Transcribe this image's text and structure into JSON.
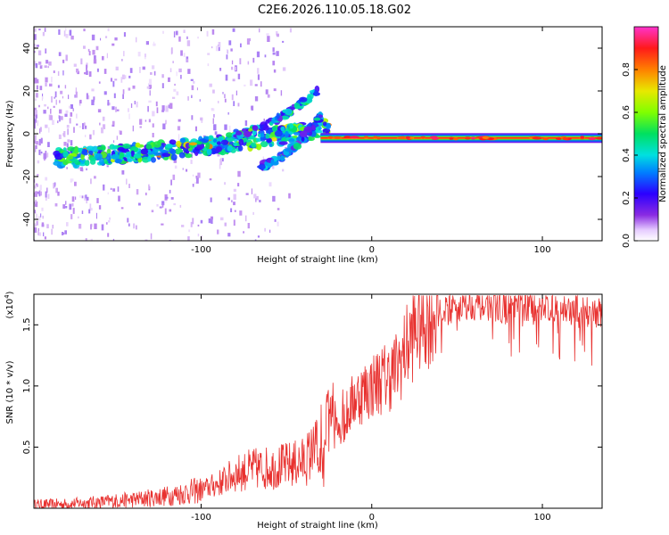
{
  "title": "C2E6.2026.110.05.18.G02",
  "chart_data": [
    {
      "type": "heatmap",
      "name": "spectrogram",
      "xlabel": "Height of straight line (km)",
      "ylabel": "Frequency (Hz)",
      "xlim": [
        -198,
        135
      ],
      "ylim": [
        -50,
        50
      ],
      "x_ticks": [
        -100,
        0,
        100
      ],
      "y_ticks": [
        -40,
        -20,
        0,
        20,
        40
      ],
      "colorbar": {
        "label": "Normalized spectral amplitude",
        "range": [
          0,
          1
        ],
        "ticks": [
          "0.0",
          "0.2",
          "0.4",
          "0.6",
          "0.8"
        ],
        "tick_values": [
          0.0,
          0.2,
          0.4,
          0.6,
          0.8
        ]
      },
      "features": [
        {
          "name": "main-track",
          "x_range": [
            -185,
            -25
          ],
          "freq_start": -11,
          "freq_end": 3,
          "intensity": 0.45
        },
        {
          "name": "upper-branch",
          "x_range": [
            -80,
            -32
          ],
          "freq_start": 0,
          "freq_end": 20,
          "intensity": 0.35
        },
        {
          "name": "lower-branch",
          "x_range": [
            -65,
            -30
          ],
          "freq_start": -15,
          "freq_end": 8,
          "intensity": 0.3
        },
        {
          "name": "carrier-line",
          "x_range": [
            -30,
            135
          ],
          "freq": -2,
          "intensity": 0.9
        }
      ]
    },
    {
      "type": "line",
      "name": "snr",
      "xlabel": "Height of straight line (km)",
      "ylabel": "SNR (10 * v/v)",
      "y_multiplier": "(x10",
      "y_multiplier_exp": "4",
      "y_multiplier_close": ")",
      "xlim": [
        -198,
        135
      ],
      "ylim": [
        0,
        17500
      ],
      "x_ticks": [
        -100,
        0,
        100
      ],
      "y_ticks": [
        5000,
        10000,
        15000
      ],
      "y_tick_labels": [
        "0.5",
        "1.0",
        "1.5"
      ],
      "series": [
        {
          "name": "SNR",
          "color": "#e8312f",
          "x": [
            -198,
            -180,
            -160,
            -140,
            -120,
            -100,
            -90,
            -80,
            -70,
            -60,
            -50,
            -40,
            -35,
            -32,
            -28,
            -25,
            -22,
            -18,
            -15,
            -10,
            -5,
            0,
            5,
            10,
            15,
            20,
            25,
            30,
            40,
            50,
            60,
            70,
            80,
            90,
            100,
            110,
            120,
            135
          ],
          "values": [
            300,
            350,
            500,
            700,
            1000,
            1500,
            2000,
            2800,
            3200,
            3300,
            3500,
            3800,
            4500,
            5000,
            3000,
            9000,
            6000,
            7000,
            7500,
            9000,
            9500,
            10000,
            10500,
            10800,
            11500,
            13000,
            14500,
            15500,
            16200,
            16500,
            16700,
            16600,
            16400,
            16500,
            16600,
            16300,
            16200,
            16000
          ]
        }
      ]
    }
  ]
}
